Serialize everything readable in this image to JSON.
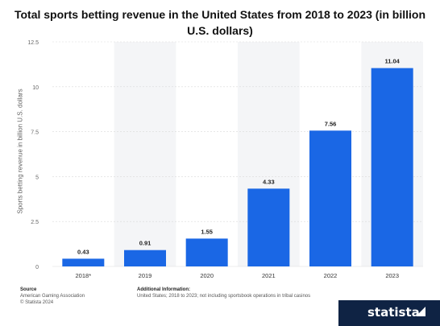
{
  "title_lines": [
    "Total sports betting revenue in the United States from 2018 to 2023 (in billion",
    "U.S. dollars)"
  ],
  "chart_data": {
    "type": "bar",
    "title": "Total sports betting revenue in the United States from 2018 to 2023 (in billion U.S. dollars)",
    "categories": [
      "2018*",
      "2019",
      "2020",
      "2021",
      "2022",
      "2023"
    ],
    "values": [
      0.43,
      0.91,
      1.55,
      4.33,
      7.56,
      11.04
    ],
    "data_labels": [
      "0.43",
      "0.91",
      "1.55",
      "4.33",
      "7.56",
      "11.04"
    ],
    "ylabel": "Sports betting revenue in billion U.S. dollars",
    "xlabel": "",
    "ylim": [
      0,
      12.5
    ],
    "yticks": [
      0,
      2.5,
      5,
      7.5,
      10,
      12.5
    ],
    "ytick_labels": [
      "0",
      "2.5",
      "5",
      "7.5",
      "10",
      "12.5"
    ],
    "grid": true,
    "bar_color": "#1a67e5",
    "band_color": "#f4f5f7"
  },
  "footer": {
    "source_heading": "Source",
    "source_lines": [
      "American Gaming Association",
      "© Statista 2024"
    ],
    "info_heading": "Additional Information:",
    "info_text": "United States; 2018 to 2023; not including sportsbook operations in tribal casinos"
  },
  "brand": {
    "name": "statista",
    "bg_color": "#0f2344"
  }
}
